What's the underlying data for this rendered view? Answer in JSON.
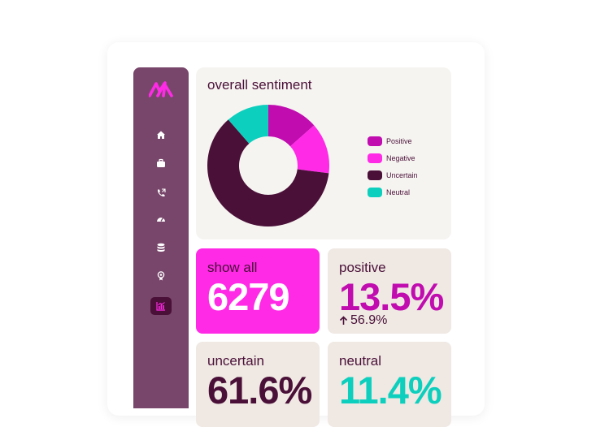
{
  "sidebar": {
    "items": [
      {
        "icon": "home-icon"
      },
      {
        "icon": "briefcase-icon"
      },
      {
        "icon": "phone-icon"
      },
      {
        "icon": "dashboard-icon"
      },
      {
        "icon": "database-icon"
      },
      {
        "icon": "award-icon"
      },
      {
        "icon": "analytics-icon",
        "active": true
      }
    ]
  },
  "sentiment_panel": {
    "title": "overall sentiment",
    "legend": [
      {
        "label": "Positive",
        "color": "#c10cb0"
      },
      {
        "label": "Negative",
        "color": "#ff2ae6"
      },
      {
        "label": "Uncertain",
        "color": "#4a1038"
      },
      {
        "label": "Neutral",
        "color": "#0dcfbd"
      }
    ]
  },
  "chart_data": {
    "type": "pie",
    "categories": [
      "Positive",
      "Negative",
      "Uncertain",
      "Neutral"
    ],
    "values": [
      13.5,
      13.5,
      61.6,
      11.4
    ],
    "colors": [
      "#c10cb0",
      "#ff2ae6",
      "#4a1038",
      "#0dcfbd"
    ],
    "title": "overall sentiment",
    "legend": "right"
  },
  "tiles": {
    "show_all": {
      "label": "show all",
      "value": "6279"
    },
    "positive": {
      "label": "positive",
      "value": "13.5%",
      "delta": "56.9%"
    },
    "uncertain": {
      "label": "uncertain",
      "value": "61.6%"
    },
    "neutral": {
      "label": "neutral",
      "value": "11.4%"
    }
  },
  "colors": {
    "sidebar": "#77466a",
    "accent": "#ff2ae6",
    "positive": "#c10cb0",
    "uncertain": "#4a1038",
    "neutral": "#0dcfbd",
    "tile_bg": "#efe8e3"
  }
}
